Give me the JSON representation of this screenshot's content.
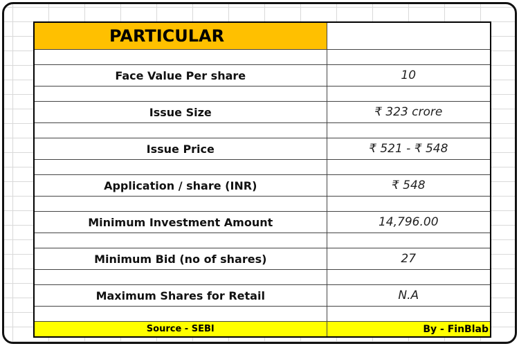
{
  "table": {
    "header": {
      "label": "PARTICULAR",
      "value": ""
    },
    "rows": [
      {
        "label": "Face Value Per share",
        "value": "10"
      },
      {
        "label": "Issue Size",
        "value": "₹ 323 crore"
      },
      {
        "label": "Issue Price",
        "value": "₹ 521 - ₹ 548"
      },
      {
        "label": "Application / share (INR)",
        "value": "₹ 548"
      },
      {
        "label": "Minimum Investment Amount",
        "value": "14,796.00"
      },
      {
        "label": "Minimum Bid (no of shares)",
        "value": "27"
      },
      {
        "label": "Maximum Shares for Retail",
        "value": "N.A"
      }
    ],
    "footer": {
      "source": "Source - SEBI",
      "credit": "By - FinBlab"
    }
  },
  "colors": {
    "header_fill": "#ffc000",
    "footer_fill": "#ffff00",
    "frame_border": "#111111",
    "gridline": "#d9d9d9"
  }
}
